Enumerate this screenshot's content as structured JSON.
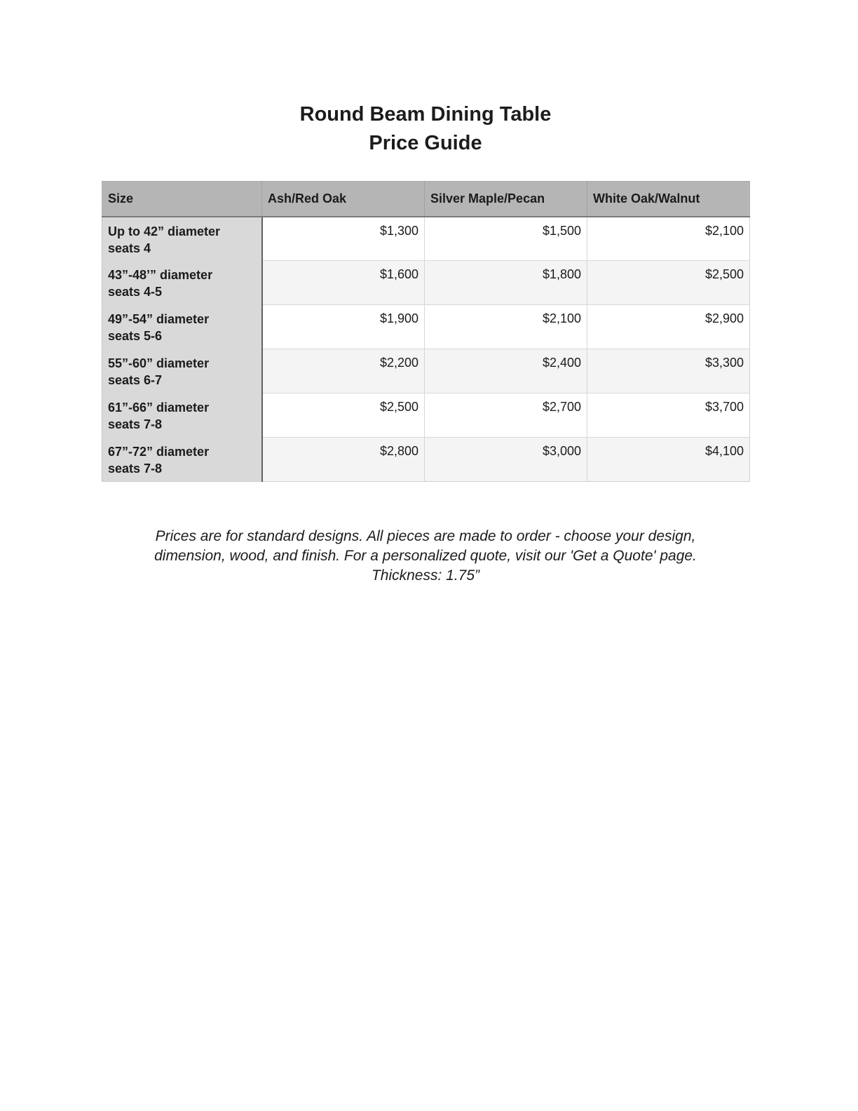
{
  "title": {
    "line1": "Round Beam Dining Table",
    "line2": "Price Guide"
  },
  "table": {
    "columns": [
      "Size",
      "Ash/Red Oak",
      "Silver Maple/Pecan",
      "White Oak/Walnut"
    ],
    "rows": [
      {
        "size": [
          "Up to 42” diameter",
          "seats 4"
        ],
        "prices": [
          "$1,300",
          "$1,500",
          "$2,100"
        ]
      },
      {
        "size": [
          "43”-48’” diameter",
          "seats 4-5"
        ],
        "prices": [
          "$1,600",
          "$1,800",
          "$2,500"
        ]
      },
      {
        "size": [
          "49”-54” diameter",
          "seats 5-6"
        ],
        "prices": [
          "$1,900",
          "$2,100",
          "$2,900"
        ]
      },
      {
        "size": [
          "55”-60” diameter",
          "seats 6-7"
        ],
        "prices": [
          "$2,200",
          "$2,400",
          "$3,300"
        ]
      },
      {
        "size": [
          "61”-66” diameter",
          "seats 7-8"
        ],
        "prices": [
          "$2,500",
          "$2,700",
          "$3,700"
        ]
      },
      {
        "size": [
          "67”-72” diameter",
          "seats 7-8"
        ],
        "prices": [
          "$2,800",
          "$3,000",
          "$4,100"
        ]
      }
    ]
  },
  "footnote": {
    "lines": [
      "Prices are for standard designs. All pieces are made to order - choose your design,",
      "dimension, wood, and finish. For a personalized quote, visit our 'Get a Quote' page.",
      "Thickness: 1.75”"
    ]
  },
  "colors": {
    "header-bg": "#b5b5b5",
    "size-col-bg": "#d9d9d9",
    "row-alt-bg": "#f4f4f4",
    "header-border": "#7a7a7a",
    "size-col-border": "#5f5f5f"
  }
}
